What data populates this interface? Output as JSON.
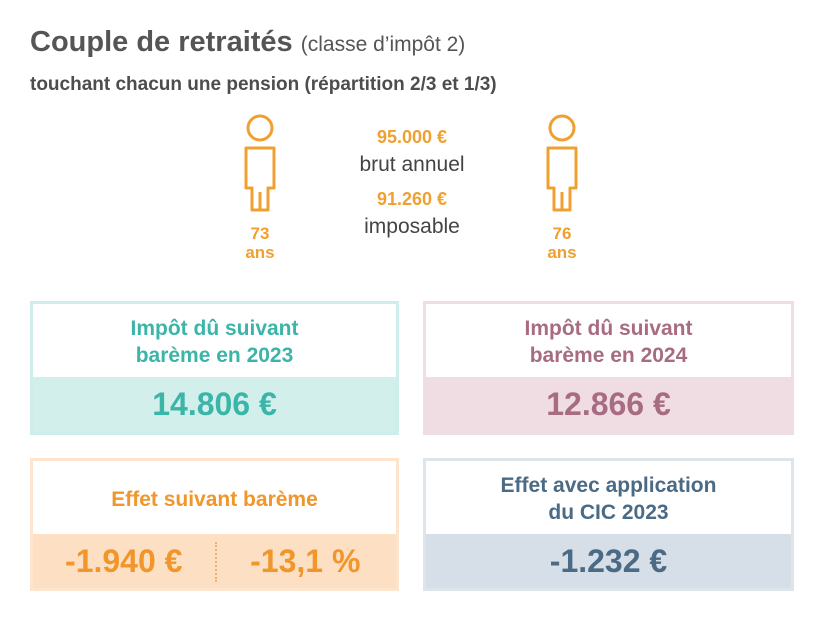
{
  "header": {
    "title": "Couple de retraités",
    "title_suffix": "(classe d’impôt 2)",
    "subtitle": "touchant chacun une pension (répartition 2/3 et 1/3)"
  },
  "persons": [
    {
      "age": "73",
      "unit": "ans"
    },
    {
      "age": "76",
      "unit": "ans"
    }
  ],
  "income": {
    "gross_amount": "95.000 €",
    "gross_label": "brut annuel",
    "taxable_amount": "91.260 €",
    "taxable_label": "imposable"
  },
  "cards": {
    "tax_2023": {
      "line1": "Impôt dû suivant",
      "line2": "barème en 2023",
      "value": "14.806 €"
    },
    "tax_2024": {
      "line1": "Impôt dû suivant",
      "line2": "barème en 2024",
      "value": "12.866 €"
    },
    "effect": {
      "label": "Effet suivant barème",
      "value_abs": "-1.940 €",
      "value_pct": "-13,1 %"
    },
    "cic": {
      "line1": "Effet avec application",
      "line2": "du CIC 2023",
      "value": "-1.232 €"
    }
  },
  "colors": {
    "teal": "#3bb5a8",
    "mauve": "#a86c82",
    "orange": "#f0962a",
    "slate": "#4a6a85",
    "person": "#f0a030"
  }
}
